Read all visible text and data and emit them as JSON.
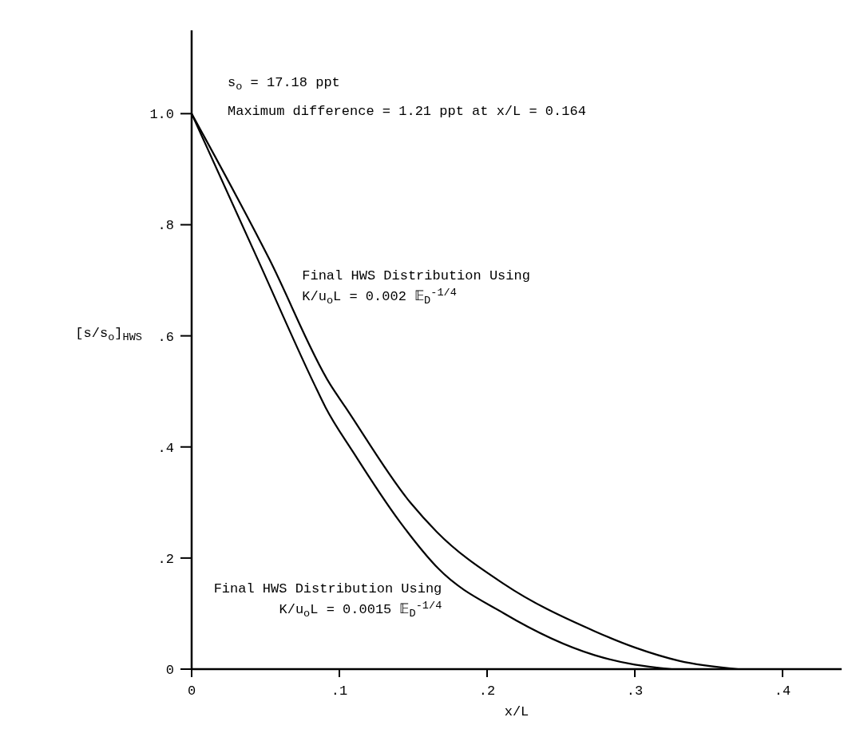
{
  "chart_data": {
    "type": "line",
    "xlabel": "x/L",
    "ylabel": "[s/s$_{o}$]$_{HWS}$",
    "xlim": [
      0,
      0.44
    ],
    "ylim": [
      0,
      1.15
    ],
    "xticks": [
      0,
      {
        "value": 0.1,
        "label": ".1"
      },
      {
        "value": 0.2,
        "label": ".2"
      },
      {
        "value": 0.3,
        "label": ".3"
      },
      {
        "value": 0.4,
        "label": ".4"
      }
    ],
    "yticks": [
      0,
      {
        "value": 0.2,
        "label": ".2"
      },
      {
        "value": 0.4,
        "label": ".4"
      },
      {
        "value": 0.6,
        "label": ".6"
      },
      {
        "value": 0.8,
        "label": ".8"
      },
      {
        "value": 1.0,
        "label": "1.0"
      }
    ],
    "annotations": [
      "s$_{o}$ = 17.18 ppt",
      "Maximum difference = 1.21 ppt at x/L = 0.164"
    ],
    "legend": false,
    "series": [
      {
        "name": "Final HWS Distribution Using K/u$_{o}$L = 0.002 𝔼$_{D}$$^{-1/4}$",
        "color": "#000000",
        "x": [
          0,
          0.0526,
          0.0937,
          0.104,
          0.148,
          0.166,
          0.211,
          0.273,
          0.3,
          0.33,
          0.37
        ],
        "values": [
          1.0,
          0.738,
          0.513,
          0.472,
          0.3,
          0.247,
          0.154,
          0.068,
          0.039,
          0.015,
          0
        ]
      },
      {
        "name": "Final HWS Distribution Using K/u$_{o}$L = 0.0015 𝔼$_{D}$$^{-1/4}$",
        "color": "#000000",
        "x": [
          0,
          0.0447,
          0.083,
          0.0905,
          0.1095,
          0.141,
          0.167,
          0.211,
          0.273,
          0.3,
          0.325
        ],
        "values": [
          1.0,
          0.738,
          0.513,
          0.472,
          0.39,
          0.265,
          0.181,
          0.101,
          0.025,
          0.008,
          0
        ]
      }
    ]
  }
}
